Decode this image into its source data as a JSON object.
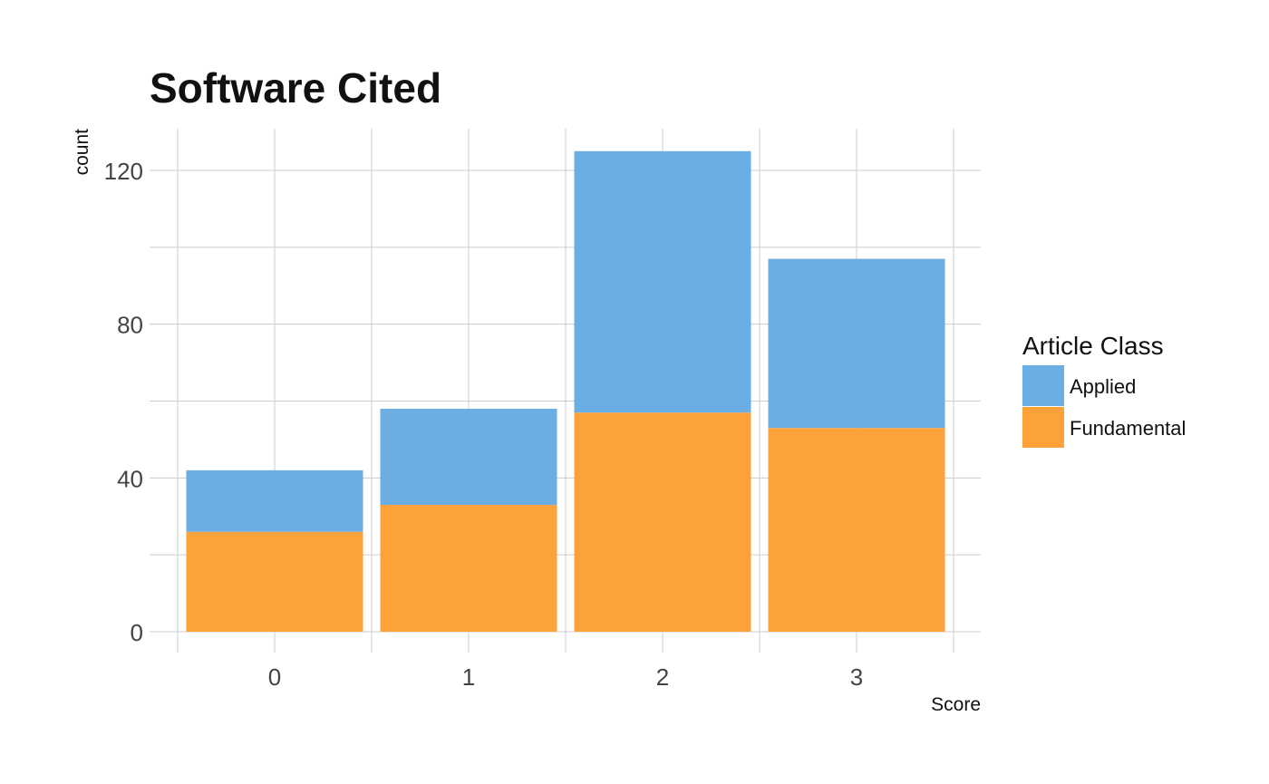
{
  "chart_data": {
    "type": "bar",
    "stacked": true,
    "title": "Software Cited",
    "xlabel": "Score",
    "ylabel": "count",
    "categories": [
      "0",
      "1",
      "2",
      "3"
    ],
    "series": [
      {
        "name": "Fundamental",
        "values": [
          26,
          33,
          57,
          53
        ],
        "color": "#fda23a"
      },
      {
        "name": "Applied",
        "values": [
          16,
          25,
          68,
          44
        ],
        "color": "#6baee3"
      }
    ],
    "ylim": [
      0,
      130
    ],
    "yticks": [
      0,
      40,
      80,
      120
    ],
    "grid": true,
    "legend": {
      "title": "Article Class",
      "placement": "right",
      "order": [
        "Applied",
        "Fundamental"
      ]
    }
  }
}
